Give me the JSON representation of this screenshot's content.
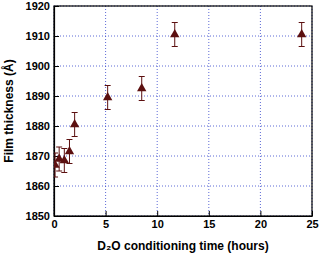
{
  "chart_data": {
    "type": "scatter",
    "x_label": "D₂O conditioning time (hours)",
    "y_label": "Film thickness (Å)",
    "x": [
      0.1,
      0.5,
      1.0,
      1.5,
      2.0,
      5.2,
      8.5,
      11.7,
      24.0
    ],
    "values": [
      1867,
      1869,
      1868.5,
      1871.5,
      1880.5,
      1889.5,
      1892.5,
      1910.5,
      1910.5
    ],
    "errors": [
      4,
      4,
      4,
      4,
      4,
      4,
      4,
      4,
      4
    ],
    "color": "#5c1010",
    "marker": "triangle",
    "xlim": [
      0,
      25
    ],
    "xticks": [
      0,
      5,
      10,
      15,
      20,
      25
    ],
    "ylim": [
      1850,
      1920
    ],
    "yticks": [
      1850,
      1860,
      1870,
      1880,
      1890,
      1900,
      1910,
      1920
    ],
    "grid": true
  }
}
